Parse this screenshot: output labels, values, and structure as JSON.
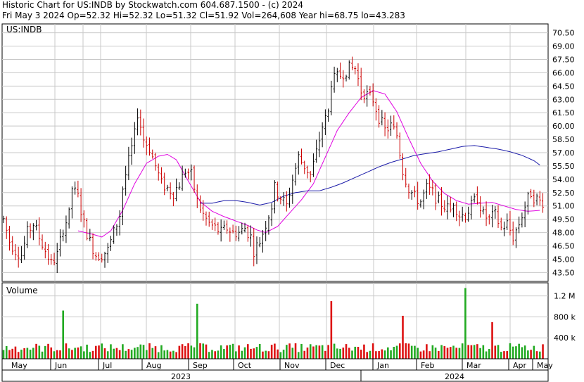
{
  "header": {
    "line1": "Historic Chart for US:INDB by Stockwatch.com 604.687.1500 - (c) 2024",
    "line2": "Fri May  3 2024   Op=52.32   Hi=52.32   Lo=51.32   Cl=51.92   Vol=264,608   Year hi=68.75   lo=43.283"
  },
  "chart_data": {
    "type": "ohlc",
    "symbol_label": "US:INDB",
    "volume_label": "Volume",
    "price_axis": {
      "ticks": [
        "70.50",
        "69.00",
        "67.50",
        "66.00",
        "64.50",
        "63.00",
        "61.50",
        "60.00",
        "58.50",
        "57.00",
        "55.50",
        "54.00",
        "52.50",
        "51.00",
        "49.50",
        "48.00",
        "46.50",
        "45.00",
        "43.50"
      ],
      "range": [
        42.5,
        71.5
      ]
    },
    "volume_axis": {
      "ticks": [
        "1.2 M",
        "800 k",
        "400 k"
      ],
      "tick_values": [
        1200000,
        800000,
        400000
      ],
      "range": [
        0,
        1450000
      ]
    },
    "x_months": [
      "May",
      "Jun",
      "Jul",
      "Aug",
      "Sep",
      "Oct",
      "Nov",
      "Dec",
      "Jan",
      "Feb",
      "Mar",
      "Apr",
      "May"
    ],
    "x_years": [
      "2023",
      "2024"
    ],
    "grid": true,
    "price_anchors": [
      [
        0,
        49.5
      ],
      [
        2,
        47
      ],
      [
        4,
        46
      ],
      [
        6,
        45.5
      ],
      [
        8,
        48
      ],
      [
        10,
        49
      ],
      [
        12,
        47.5
      ],
      [
        14,
        46
      ],
      [
        16,
        44.5
      ],
      [
        18,
        45.5
      ],
      [
        20,
        48.5
      ],
      [
        22,
        50
      ],
      [
        23,
        53
      ],
      [
        25,
        52
      ],
      [
        27,
        49
      ],
      [
        29,
        47
      ],
      [
        31,
        45.5
      ],
      [
        33,
        45.5
      ],
      [
        35,
        46
      ],
      [
        37,
        48
      ],
      [
        39,
        50
      ],
      [
        40,
        53
      ],
      [
        42,
        56
      ],
      [
        44,
        59
      ],
      [
        45,
        61.5
      ],
      [
        47,
        58.5
      ],
      [
        49,
        57.5
      ],
      [
        51,
        55.5
      ],
      [
        53,
        53.5
      ],
      [
        55,
        53
      ],
      [
        57,
        52.5
      ],
      [
        59,
        53.5
      ],
      [
        61,
        55
      ],
      [
        63,
        54.5
      ],
      [
        65,
        51.5
      ],
      [
        67,
        50
      ],
      [
        69,
        49
      ],
      [
        71,
        48.5
      ],
      [
        73,
        48
      ],
      [
        75,
        48.5
      ],
      [
        77,
        48
      ],
      [
        79,
        48
      ],
      [
        81,
        48.5
      ],
      [
        83,
        47.5
      ],
      [
        84,
        46
      ],
      [
        86,
        47
      ],
      [
        88,
        49
      ],
      [
        90,
        51
      ],
      [
        91,
        53
      ],
      [
        93,
        52
      ],
      [
        95,
        51
      ],
      [
        97,
        54
      ],
      [
        99,
        56.5
      ],
      [
        101,
        55.5
      ],
      [
        103,
        54.5
      ],
      [
        105,
        57
      ],
      [
        107,
        60
      ],
      [
        109,
        61.5
      ],
      [
        110,
        65
      ],
      [
        112,
        65.5
      ],
      [
        114,
        66
      ],
      [
        116,
        66.5
      ],
      [
        118,
        66.5
      ],
      [
        120,
        64
      ],
      [
        122,
        63.5
      ],
      [
        124,
        63
      ],
      [
        126,
        61
      ],
      [
        128,
        59.5
      ],
      [
        130,
        60
      ],
      [
        132,
        59
      ],
      [
        134,
        55
      ],
      [
        136,
        53
      ],
      [
        138,
        52
      ],
      [
        140,
        51.5
      ],
      [
        142,
        53
      ],
      [
        144,
        52.5
      ],
      [
        146,
        51.5
      ],
      [
        148,
        51
      ],
      [
        150,
        50.5
      ],
      [
        151,
        51.5
      ],
      [
        153,
        50
      ],
      [
        155,
        50
      ],
      [
        157,
        51
      ],
      [
        159,
        52
      ],
      [
        161,
        50
      ],
      [
        163,
        49.5
      ],
      [
        165,
        50
      ],
      [
        167,
        48.5
      ],
      [
        169,
        49
      ],
      [
        171,
        47.5
      ],
      [
        173,
        49
      ],
      [
        175,
        51
      ],
      [
        177,
        52.5
      ],
      [
        178,
        52
      ],
      [
        180,
        51.5
      ]
    ],
    "ma_short_anchors": [
      [
        25,
        48.2
      ],
      [
        30,
        47.8
      ],
      [
        33,
        47.5
      ],
      [
        36,
        48.2
      ],
      [
        40,
        50.5
      ],
      [
        44,
        53.5
      ],
      [
        48,
        55.8
      ],
      [
        52,
        56.6
      ],
      [
        55,
        56.8
      ],
      [
        58,
        56.2
      ],
      [
        62,
        53.8
      ],
      [
        66,
        51.5
      ],
      [
        70,
        50.4
      ],
      [
        74,
        49.8
      ],
      [
        78,
        49.3
      ],
      [
        82,
        48.8
      ],
      [
        85,
        48.3
      ],
      [
        88,
        48
      ],
      [
        92,
        48.7
      ],
      [
        96,
        50.2
      ],
      [
        100,
        51.7
      ],
      [
        104,
        53.5
      ],
      [
        108,
        56.5
      ],
      [
        112,
        59.5
      ],
      [
        116,
        61.5
      ],
      [
        120,
        63.2
      ],
      [
        124,
        64
      ],
      [
        128,
        63.6
      ],
      [
        132,
        61.6
      ],
      [
        136,
        58.6
      ],
      [
        140,
        55.8
      ],
      [
        144,
        53.8
      ],
      [
        148,
        52.4
      ],
      [
        152,
        51.6
      ],
      [
        156,
        51.2
      ],
      [
        160,
        51.3
      ],
      [
        164,
        51.4
      ],
      [
        168,
        51
      ],
      [
        172,
        50.6
      ],
      [
        176,
        50.4
      ],
      [
        180,
        50.5
      ]
    ],
    "ma_long_anchors": [
      [
        66,
        51.3
      ],
      [
        70,
        51.3
      ],
      [
        74,
        51.6
      ],
      [
        78,
        51.6
      ],
      [
        82,
        51.4
      ],
      [
        86,
        51.1
      ],
      [
        90,
        51.4
      ],
      [
        94,
        52.1
      ],
      [
        98,
        52.5
      ],
      [
        102,
        52.7
      ],
      [
        106,
        52.7
      ],
      [
        110,
        53.1
      ],
      [
        114,
        53.6
      ],
      [
        118,
        54.2
      ],
      [
        122,
        54.8
      ],
      [
        126,
        55.4
      ],
      [
        130,
        55.9
      ],
      [
        134,
        56.3
      ],
      [
        138,
        56.7
      ],
      [
        142,
        56.9
      ],
      [
        146,
        57.1
      ],
      [
        150,
        57.4
      ],
      [
        154,
        57.7
      ],
      [
        158,
        57.8
      ],
      [
        162,
        57.6
      ],
      [
        166,
        57.4
      ],
      [
        170,
        57.1
      ],
      [
        174,
        56.7
      ],
      [
        178,
        56.1
      ],
      [
        180,
        55.6
      ]
    ],
    "volume_spikes": [
      [
        20,
        920000
      ],
      [
        65,
        1050000
      ],
      [
        110,
        1100000
      ],
      [
        134,
        820000
      ],
      [
        155,
        1350000
      ],
      [
        164,
        700000
      ]
    ],
    "volume_base": 230000
  },
  "colors": {
    "background": "#ffffff",
    "grid": "#c8c8c8",
    "bar_up": "#000000",
    "bar_down": "#cc0000",
    "ma_short": "#e000e0",
    "ma_long": "#1a1aa8",
    "volume_up": "#22aa22",
    "volume_down": "#dd1111"
  }
}
